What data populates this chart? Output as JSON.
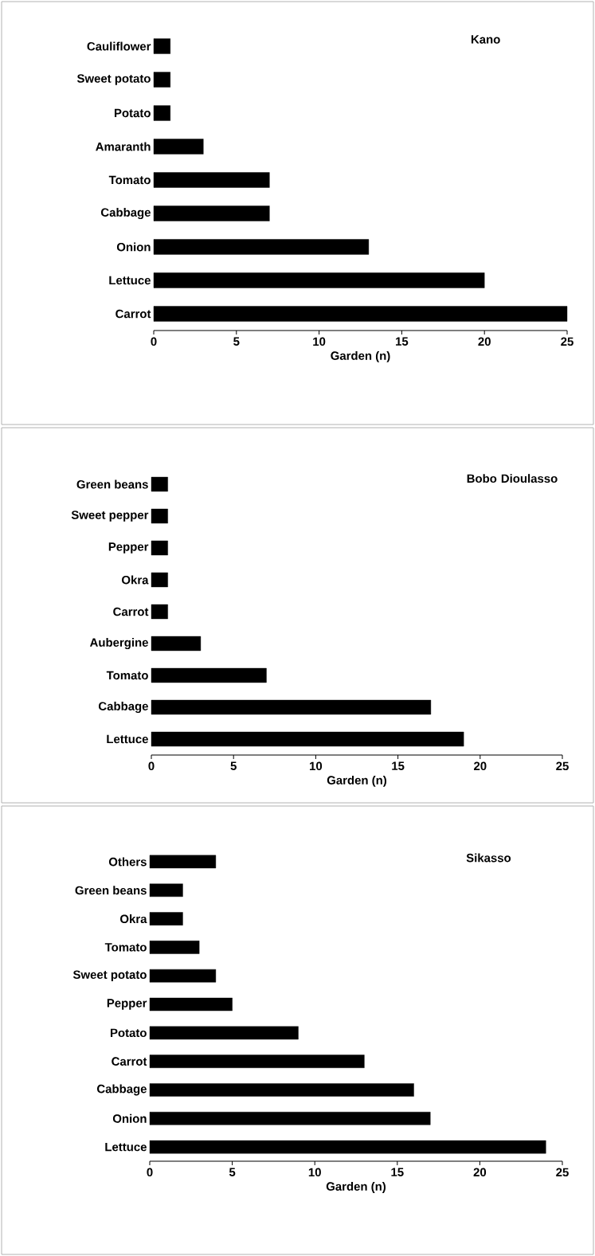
{
  "chart_data": [
    {
      "type": "bar",
      "orientation": "horizontal",
      "categories": [
        "Cauliflower",
        "Sweet potato",
        "Potato",
        "Amaranth",
        "Tomato",
        "Cabbage",
        "Onion",
        "Lettuce",
        "Carrot"
      ],
      "values": [
        1,
        1,
        1,
        3,
        7,
        7,
        13,
        20,
        25
      ],
      "color": "#000000",
      "xlim": [
        0,
        25
      ],
      "xticks": [
        0,
        5,
        10,
        15,
        20,
        25
      ],
      "xlabel": "Garden (n)",
      "annotations": [
        "Kano"
      ]
    },
    {
      "type": "bar",
      "orientation": "horizontal",
      "categories": [
        "Green beans",
        "Sweet pepper",
        "Pepper",
        "Okra",
        "Carrot",
        "Aubergine",
        "Tomato",
        "Cabbage",
        "Lettuce"
      ],
      "values": [
        1,
        1,
        1,
        1,
        1,
        3,
        7,
        17,
        19
      ],
      "color": "#000000",
      "xlim": [
        0,
        25
      ],
      "xticks": [
        0,
        5,
        10,
        15,
        20,
        25
      ],
      "xlabel": "Garden (n)",
      "annotations": [
        "Bobo Dioulasso"
      ]
    },
    {
      "type": "bar",
      "orientation": "horizontal",
      "categories": [
        "Others",
        "Green beans",
        "Okra",
        "Tomato",
        "Sweet potato",
        "Pepper",
        "Potato",
        "Carrot",
        "Cabbage",
        "Onion",
        "Lettuce"
      ],
      "values": [
        4,
        2,
        2,
        3,
        4,
        5,
        9,
        13,
        16,
        17,
        24
      ],
      "color": "#000000",
      "xlim": [
        0,
        25
      ],
      "xticks": [
        0,
        5,
        10,
        15,
        20,
        25
      ],
      "xlabel": "Garden (n)",
      "annotations": [
        "Sikasso"
      ]
    }
  ]
}
